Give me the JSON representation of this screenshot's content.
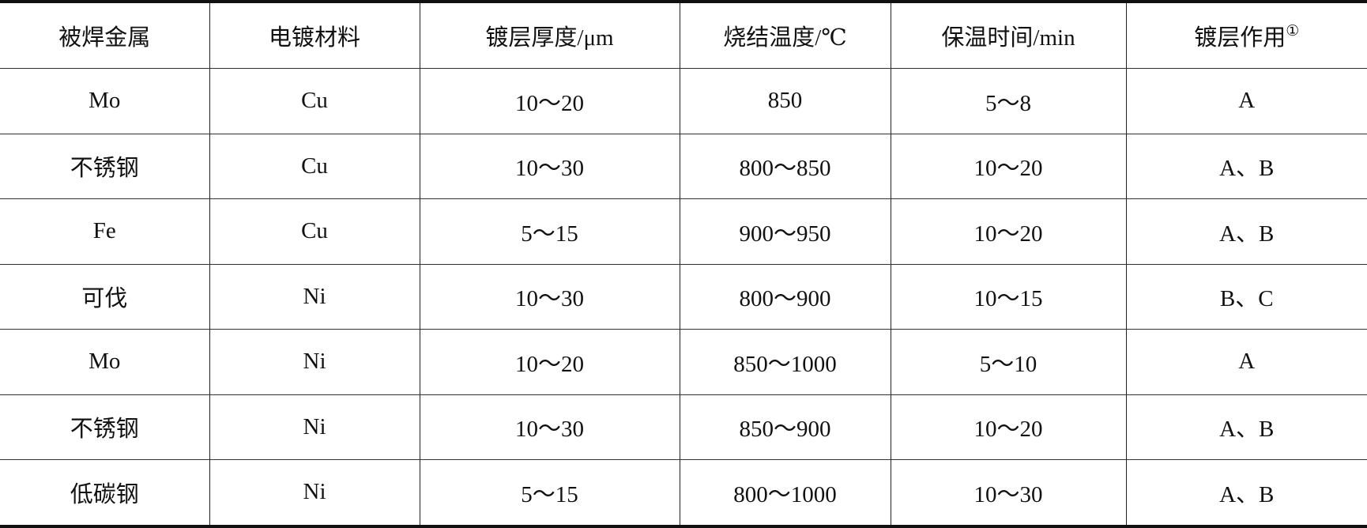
{
  "table": {
    "headers": [
      "被焊金属",
      "电镀材料",
      "镀层厚度/μm",
      "烧结温度/℃",
      "保温时间/min",
      "镀层作用"
    ],
    "header_note_mark": "①",
    "rows": [
      [
        "Mo",
        "Cu",
        "10～20",
        "850",
        "5～8",
        "A"
      ],
      [
        "不锈钢",
        "Cu",
        "10～30",
        "800～850",
        "10～20",
        "A、B"
      ],
      [
        "Fe",
        "Cu",
        "5～15",
        "900～950",
        "10～20",
        "A、B"
      ],
      [
        "可伐",
        "Ni",
        "10～30",
        "800～900",
        "10～15",
        "B、C"
      ],
      [
        "Mo",
        "Ni",
        "10～20",
        "850～1000",
        "5～10",
        "A"
      ],
      [
        "不锈钢",
        "Ni",
        "10～30",
        "850～900",
        "10～20",
        "A、B"
      ],
      [
        "低碳钢",
        "Ni",
        "5～15",
        "800～1000",
        "10～30",
        "A、B"
      ]
    ]
  }
}
